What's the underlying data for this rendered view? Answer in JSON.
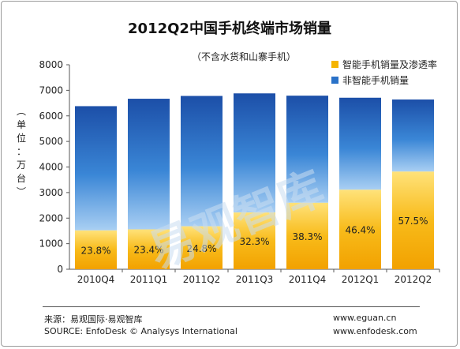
{
  "chart_data": {
    "type": "bar",
    "stacked": true,
    "title": "2012Q2中国手机终端市场销量",
    "subtitle": "（不含水货和山寨手机）",
    "ylabel": "单位：万台",
    "ylim": [
      0,
      8000
    ],
    "yticks": [
      0,
      1000,
      2000,
      3000,
      4000,
      5000,
      6000,
      7000,
      8000
    ],
    "grid": false,
    "legend_position": "top-right",
    "categories": [
      "2010Q4",
      "2011Q1",
      "2011Q2",
      "2011Q3",
      "2011Q4",
      "2012Q1",
      "2012Q2"
    ],
    "series": [
      {
        "name": "智能手机销量及渗透率",
        "color": "#f5b400",
        "values": [
          1520,
          1560,
          1680,
          2220,
          2600,
          3110,
          3820
        ],
        "labels": [
          "23.8%",
          "23.4%",
          "24.8%",
          "32.3%",
          "38.3%",
          "46.4%",
          "57.5%"
        ]
      },
      {
        "name": "非智能手机销量",
        "color": "#2a72c8",
        "values": [
          4860,
          5110,
          5100,
          4660,
          4190,
          3600,
          2820
        ]
      }
    ]
  },
  "watermark": "易观智库",
  "footer": {
    "source_cn": "来源：易观国际·易观智库",
    "source_en": "SOURCE: EnfoDesk © Analysys International",
    "url1": "www.eguan.cn",
    "url2": "www.enfodesk.com"
  }
}
